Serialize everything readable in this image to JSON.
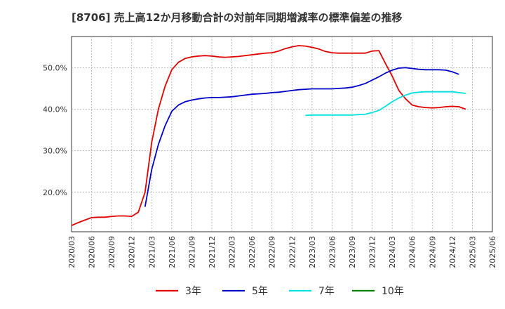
{
  "chart_data": {
    "type": "line",
    "title": "[8706]  売上高12か月移動合計の対前年同期増減率の標準偏差の推移",
    "xlabel": "",
    "ylabel": "",
    "ylim": [
      10.5,
      57.5
    ],
    "y_ticks": [
      20,
      30,
      40,
      50
    ],
    "y_tick_labels": [
      "20.0%",
      "30.0%",
      "40.0%",
      "50.0%"
    ],
    "x_tick_labels": [
      "2020/03",
      "2020/06",
      "2020/09",
      "2020/12",
      "2021/03",
      "2021/06",
      "2021/09",
      "2021/12",
      "2022/03",
      "2022/06",
      "2022/09",
      "2022/12",
      "2023/03",
      "2023/06",
      "2023/09",
      "2023/12",
      "2024/03",
      "2024/06",
      "2024/09",
      "2024/12",
      "2025/03",
      "2025/06"
    ],
    "x_range_months": [
      0,
      63
    ],
    "grid": true,
    "legend_position": "bottom",
    "series": [
      {
        "name": "3年",
        "color": "#e00000",
        "points": [
          [
            0,
            12.0
          ],
          [
            1,
            12.7
          ],
          [
            2,
            13.3
          ],
          [
            3,
            13.9
          ],
          [
            4,
            14.0
          ],
          [
            5,
            14.0
          ],
          [
            6,
            14.2
          ],
          [
            7,
            14.3
          ],
          [
            8,
            14.3
          ],
          [
            9,
            14.2
          ],
          [
            10,
            15.2
          ],
          [
            11,
            20.0
          ],
          [
            12,
            32.0
          ],
          [
            13,
            40.0
          ],
          [
            14,
            45.5
          ],
          [
            15,
            49.5
          ],
          [
            16,
            51.3
          ],
          [
            17,
            52.2
          ],
          [
            18,
            52.6
          ],
          [
            19,
            52.8
          ],
          [
            20,
            52.9
          ],
          [
            21,
            52.8
          ],
          [
            22,
            52.6
          ],
          [
            23,
            52.5
          ],
          [
            24,
            52.6
          ],
          [
            25,
            52.7
          ],
          [
            26,
            52.9
          ],
          [
            27,
            53.1
          ],
          [
            28,
            53.3
          ],
          [
            29,
            53.5
          ],
          [
            30,
            53.6
          ],
          [
            31,
            54.0
          ],
          [
            32,
            54.6
          ],
          [
            33,
            55.0
          ],
          [
            34,
            55.3
          ],
          [
            35,
            55.2
          ],
          [
            36,
            54.9
          ],
          [
            37,
            54.5
          ],
          [
            38,
            53.9
          ],
          [
            39,
            53.6
          ],
          [
            40,
            53.5
          ],
          [
            41,
            53.5
          ],
          [
            42,
            53.5
          ],
          [
            43,
            53.5
          ],
          [
            44,
            53.5
          ],
          [
            45,
            54.0
          ],
          [
            46,
            54.1
          ],
          [
            47,
            51.0
          ],
          [
            48,
            48.0
          ],
          [
            49,
            44.5
          ],
          [
            50,
            42.5
          ],
          [
            51,
            41.0
          ],
          [
            52,
            40.6
          ],
          [
            53,
            40.4
          ],
          [
            54,
            40.3
          ],
          [
            55,
            40.4
          ],
          [
            56,
            40.6
          ],
          [
            57,
            40.7
          ],
          [
            58,
            40.6
          ],
          [
            59,
            40.0
          ]
        ]
      },
      {
        "name": "5年",
        "color": "#0000c8",
        "points": [
          [
            11,
            16.5
          ],
          [
            12,
            25.5
          ],
          [
            13,
            31.5
          ],
          [
            14,
            36.0
          ],
          [
            15,
            39.5
          ],
          [
            16,
            41.0
          ],
          [
            17,
            41.8
          ],
          [
            18,
            42.2
          ],
          [
            19,
            42.5
          ],
          [
            20,
            42.7
          ],
          [
            21,
            42.8
          ],
          [
            22,
            42.8
          ],
          [
            23,
            42.9
          ],
          [
            24,
            43.0
          ],
          [
            25,
            43.2
          ],
          [
            26,
            43.4
          ],
          [
            27,
            43.6
          ],
          [
            28,
            43.7
          ],
          [
            29,
            43.8
          ],
          [
            30,
            44.0
          ],
          [
            31,
            44.1
          ],
          [
            32,
            44.3
          ],
          [
            33,
            44.5
          ],
          [
            34,
            44.7
          ],
          [
            35,
            44.8
          ],
          [
            36,
            44.9
          ],
          [
            37,
            44.9
          ],
          [
            38,
            44.9
          ],
          [
            39,
            44.9
          ],
          [
            40,
            45.0
          ],
          [
            41,
            45.1
          ],
          [
            42,
            45.3
          ],
          [
            43,
            45.7
          ],
          [
            44,
            46.2
          ],
          [
            45,
            47.0
          ],
          [
            46,
            47.8
          ],
          [
            47,
            48.7
          ],
          [
            48,
            49.4
          ],
          [
            49,
            49.9
          ],
          [
            50,
            50.0
          ],
          [
            51,
            49.8
          ],
          [
            52,
            49.6
          ],
          [
            53,
            49.5
          ],
          [
            54,
            49.5
          ],
          [
            55,
            49.5
          ],
          [
            56,
            49.4
          ],
          [
            57,
            49.0
          ],
          [
            58,
            48.4
          ]
        ]
      },
      {
        "name": "7年",
        "color": "#00e0e0",
        "points": [
          [
            35,
            38.5
          ],
          [
            36,
            38.6
          ],
          [
            37,
            38.6
          ],
          [
            38,
            38.6
          ],
          [
            39,
            38.6
          ],
          [
            40,
            38.6
          ],
          [
            41,
            38.6
          ],
          [
            42,
            38.6
          ],
          [
            43,
            38.7
          ],
          [
            44,
            38.8
          ],
          [
            45,
            39.2
          ],
          [
            46,
            39.7
          ],
          [
            47,
            40.7
          ],
          [
            48,
            41.8
          ],
          [
            49,
            42.7
          ],
          [
            50,
            43.4
          ],
          [
            51,
            43.9
          ],
          [
            52,
            44.1
          ],
          [
            53,
            44.2
          ],
          [
            54,
            44.2
          ],
          [
            55,
            44.2
          ],
          [
            56,
            44.2
          ],
          [
            57,
            44.2
          ],
          [
            58,
            44.0
          ],
          [
            59,
            43.8
          ]
        ]
      },
      {
        "name": "10年",
        "color": "#008000",
        "points": []
      }
    ]
  }
}
